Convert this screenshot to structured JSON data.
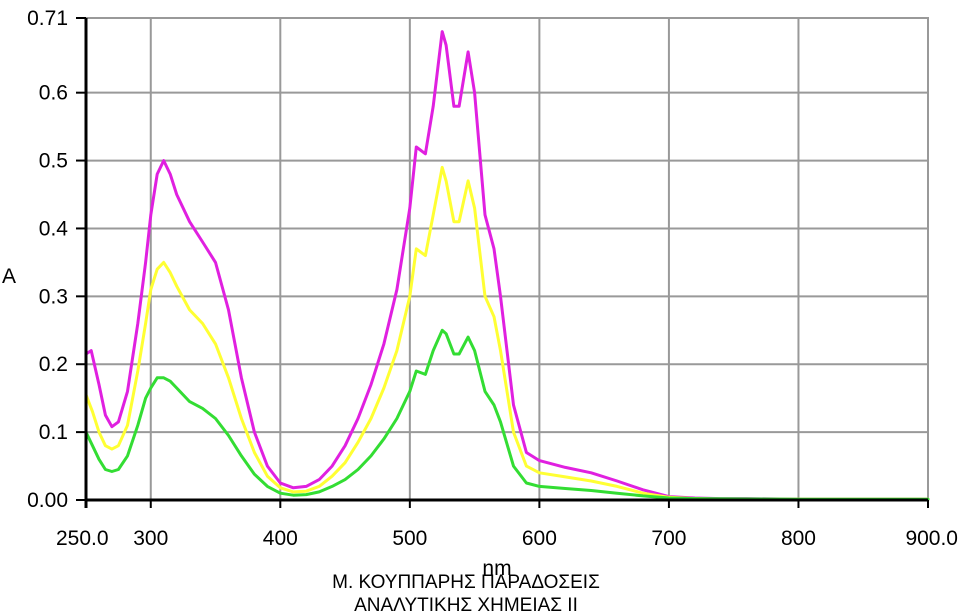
{
  "chart_data": {
    "type": "line",
    "title": "",
    "xlabel": "nm",
    "ylabel": "A",
    "xlim": [
      250,
      900
    ],
    "ylim": [
      0,
      0.71
    ],
    "grid": true,
    "legend": "none",
    "x_ticks": [
      {
        "value": 250,
        "label": "250.0"
      },
      {
        "value": 300,
        "label": "300"
      },
      {
        "value": 400,
        "label": "400"
      },
      {
        "value": 500,
        "label": "500"
      },
      {
        "value": 600,
        "label": "600"
      },
      {
        "value": 700,
        "label": "700"
      },
      {
        "value": 800,
        "label": "800"
      },
      {
        "value": 900,
        "label": "900.0"
      }
    ],
    "y_ticks": [
      {
        "value": 0.0,
        "label": "0.00"
      },
      {
        "value": 0.1,
        "label": "0.1"
      },
      {
        "value": 0.2,
        "label": "0.2"
      },
      {
        "value": 0.3,
        "label": "0.3"
      },
      {
        "value": 0.4,
        "label": "0.4"
      },
      {
        "value": 0.5,
        "label": "0.5"
      },
      {
        "value": 0.6,
        "label": "0.6"
      },
      {
        "value": 0.71,
        "label": "0.71"
      }
    ],
    "series": [
      {
        "color": "#e020e0",
        "points": [
          [
            250,
            0.215
          ],
          [
            254,
            0.22
          ],
          [
            260,
            0.17
          ],
          [
            265,
            0.125
          ],
          [
            270,
            0.108
          ],
          [
            275,
            0.115
          ],
          [
            282,
            0.16
          ],
          [
            290,
            0.26
          ],
          [
            296,
            0.35
          ],
          [
            300,
            0.42
          ],
          [
            305,
            0.48
          ],
          [
            310,
            0.5
          ],
          [
            315,
            0.48
          ],
          [
            320,
            0.45
          ],
          [
            330,
            0.41
          ],
          [
            340,
            0.38
          ],
          [
            350,
            0.35
          ],
          [
            360,
            0.28
          ],
          [
            370,
            0.18
          ],
          [
            380,
            0.1
          ],
          [
            390,
            0.05
          ],
          [
            400,
            0.025
          ],
          [
            410,
            0.018
          ],
          [
            420,
            0.02
          ],
          [
            430,
            0.03
          ],
          [
            440,
            0.05
          ],
          [
            450,
            0.08
          ],
          [
            460,
            0.12
          ],
          [
            470,
            0.17
          ],
          [
            480,
            0.23
          ],
          [
            490,
            0.31
          ],
          [
            500,
            0.43
          ],
          [
            505,
            0.52
          ],
          [
            512,
            0.51
          ],
          [
            518,
            0.58
          ],
          [
            525,
            0.69
          ],
          [
            528,
            0.67
          ],
          [
            534,
            0.58
          ],
          [
            538,
            0.58
          ],
          [
            545,
            0.66
          ],
          [
            550,
            0.6
          ],
          [
            558,
            0.42
          ],
          [
            565,
            0.37
          ],
          [
            570,
            0.3
          ],
          [
            580,
            0.14
          ],
          [
            590,
            0.07
          ],
          [
            600,
            0.058
          ],
          [
            620,
            0.048
          ],
          [
            640,
            0.04
          ],
          [
            660,
            0.028
          ],
          [
            680,
            0.015
          ],
          [
            700,
            0.005
          ],
          [
            720,
            0.003
          ],
          [
            740,
            0.002
          ],
          [
            760,
            0.002
          ],
          [
            800,
            0.001
          ],
          [
            850,
            0.001
          ],
          [
            900,
            0.001
          ]
        ]
      },
      {
        "color": "#ffff33",
        "points": [
          [
            250,
            0.155
          ],
          [
            255,
            0.13
          ],
          [
            260,
            0.1
          ],
          [
            265,
            0.08
          ],
          [
            270,
            0.075
          ],
          [
            275,
            0.08
          ],
          [
            282,
            0.11
          ],
          [
            290,
            0.19
          ],
          [
            296,
            0.26
          ],
          [
            300,
            0.31
          ],
          [
            305,
            0.34
          ],
          [
            310,
            0.35
          ],
          [
            315,
            0.335
          ],
          [
            320,
            0.315
          ],
          [
            330,
            0.28
          ],
          [
            340,
            0.26
          ],
          [
            350,
            0.23
          ],
          [
            360,
            0.18
          ],
          [
            370,
            0.12
          ],
          [
            380,
            0.07
          ],
          [
            390,
            0.035
          ],
          [
            400,
            0.018
          ],
          [
            410,
            0.012
          ],
          [
            420,
            0.013
          ],
          [
            430,
            0.02
          ],
          [
            440,
            0.035
          ],
          [
            450,
            0.055
          ],
          [
            460,
            0.085
          ],
          [
            470,
            0.12
          ],
          [
            480,
            0.165
          ],
          [
            490,
            0.22
          ],
          [
            500,
            0.3
          ],
          [
            505,
            0.37
          ],
          [
            512,
            0.36
          ],
          [
            518,
            0.42
          ],
          [
            525,
            0.49
          ],
          [
            528,
            0.47
          ],
          [
            534,
            0.41
          ],
          [
            538,
            0.41
          ],
          [
            545,
            0.47
          ],
          [
            550,
            0.43
          ],
          [
            558,
            0.3
          ],
          [
            565,
            0.27
          ],
          [
            570,
            0.22
          ],
          [
            580,
            0.1
          ],
          [
            590,
            0.05
          ],
          [
            600,
            0.04
          ],
          [
            620,
            0.034
          ],
          [
            640,
            0.028
          ],
          [
            660,
            0.02
          ],
          [
            680,
            0.01
          ],
          [
            700,
            0.004
          ],
          [
            720,
            0.002
          ],
          [
            740,
            0.001
          ],
          [
            800,
            0.001
          ],
          [
            850,
            0.001
          ],
          [
            900,
            0.001
          ]
        ]
      },
      {
        "color": "#33dd33",
        "points": [
          [
            250,
            0.1
          ],
          [
            255,
            0.08
          ],
          [
            260,
            0.06
          ],
          [
            265,
            0.045
          ],
          [
            270,
            0.042
          ],
          [
            275,
            0.045
          ],
          [
            282,
            0.065
          ],
          [
            290,
            0.11
          ],
          [
            296,
            0.15
          ],
          [
            300,
            0.165
          ],
          [
            305,
            0.18
          ],
          [
            310,
            0.18
          ],
          [
            315,
            0.175
          ],
          [
            320,
            0.165
          ],
          [
            330,
            0.145
          ],
          [
            340,
            0.135
          ],
          [
            350,
            0.12
          ],
          [
            360,
            0.095
          ],
          [
            370,
            0.065
          ],
          [
            380,
            0.038
          ],
          [
            390,
            0.02
          ],
          [
            400,
            0.01
          ],
          [
            410,
            0.007
          ],
          [
            420,
            0.008
          ],
          [
            430,
            0.012
          ],
          [
            440,
            0.02
          ],
          [
            450,
            0.03
          ],
          [
            460,
            0.045
          ],
          [
            470,
            0.065
          ],
          [
            480,
            0.09
          ],
          [
            490,
            0.12
          ],
          [
            500,
            0.16
          ],
          [
            505,
            0.19
          ],
          [
            512,
            0.185
          ],
          [
            518,
            0.22
          ],
          [
            525,
            0.25
          ],
          [
            528,
            0.245
          ],
          [
            534,
            0.215
          ],
          [
            538,
            0.215
          ],
          [
            545,
            0.24
          ],
          [
            550,
            0.22
          ],
          [
            558,
            0.16
          ],
          [
            565,
            0.14
          ],
          [
            570,
            0.115
          ],
          [
            580,
            0.05
          ],
          [
            590,
            0.025
          ],
          [
            600,
            0.02
          ],
          [
            620,
            0.017
          ],
          [
            640,
            0.014
          ],
          [
            660,
            0.01
          ],
          [
            680,
            0.006
          ],
          [
            700,
            0.003
          ],
          [
            720,
            0.002
          ],
          [
            800,
            0.001
          ],
          [
            900,
            0.001
          ]
        ]
      }
    ]
  },
  "footer": {
    "line1": "Μ. ΚΟΥΠΠΑΡΗΣ ΠΑΡΑΔΟΣΕΙΣ",
    "line2": "ΑΝΑΛΥΤΙΚΗΣ ΧΗΜΕΙΑΣ ΙΙ"
  }
}
